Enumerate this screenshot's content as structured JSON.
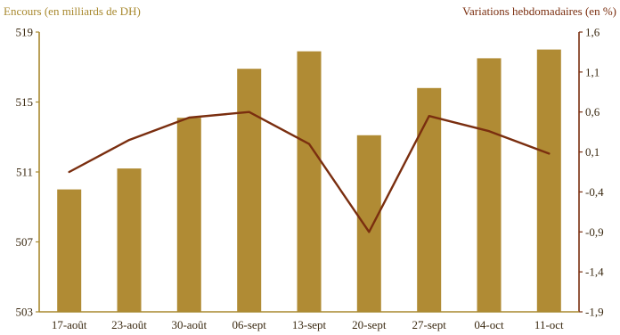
{
  "chart_data": {
    "type": "bar",
    "title": "",
    "categories": [
      "17-août",
      "23-août",
      "30-août",
      "06-sept",
      "13-sept",
      "20-sept",
      "27-sept",
      "04-oct",
      "11-oct"
    ],
    "series": [
      {
        "type": "bar",
        "axis": "left",
        "values": [
          510.0,
          511.2,
          514.1,
          516.9,
          517.9,
          513.1,
          515.8,
          517.5,
          518.0
        ]
      },
      {
        "type": "line",
        "axis": "right",
        "values": [
          -0.15,
          0.25,
          0.53,
          0.6,
          0.2,
          -0.9,
          0.55,
          0.36,
          0.08
        ]
      }
    ],
    "y_left": {
      "label": "Encours (en milliards de DH)",
      "range": [
        503,
        519
      ],
      "ticks": [
        503,
        507,
        511,
        515,
        519
      ],
      "tick_labels": [
        "503",
        "507",
        "511",
        "515",
        "519"
      ]
    },
    "y_right": {
      "label": "Variations hebdomadaires (en %)",
      "range": [
        -1.9,
        1.6
      ],
      "ticks": [
        -1.9,
        -1.4,
        -0.9,
        -0.4,
        0.1,
        0.6,
        1.1,
        1.6
      ],
      "tick_labels": [
        "-1,9",
        "-1,4",
        "-0,9",
        "-0,4",
        "0,1",
        "0,6",
        "1,1",
        "1,6"
      ]
    },
    "grid": false,
    "legend": "none",
    "colors": {
      "bar": "#b08b34",
      "line": "#7a2e0f",
      "left_axis": "#a8892f",
      "right_axis": "#7a2e0f",
      "left_title": "#a8892f",
      "right_title": "#7a2e0f",
      "tick_text": "#3b2a12"
    }
  }
}
